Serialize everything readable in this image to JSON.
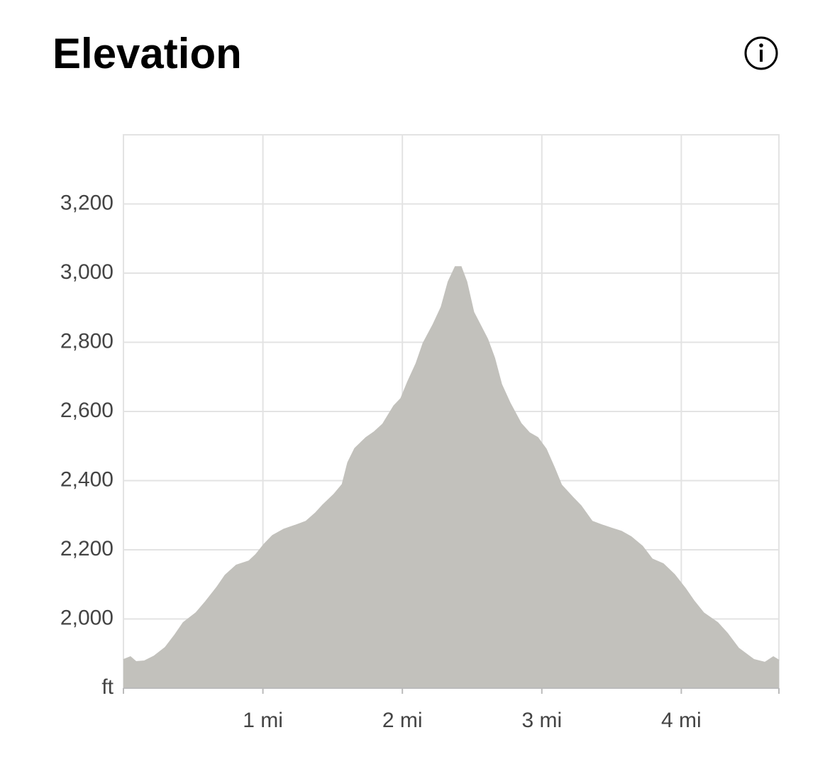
{
  "chart_data": {
    "type": "area",
    "title": "Elevation",
    "y_unit": "ft",
    "color": "#c2c1bc",
    "grid": true,
    "x": [
      0,
      0.05,
      0.09,
      0.15,
      0.22,
      0.3,
      0.37,
      0.43,
      0.52,
      0.59,
      0.67,
      0.73,
      0.81,
      0.9,
      0.95,
      1.01,
      1.07,
      1.15,
      1.23,
      1.31,
      1.38,
      1.43,
      1.51,
      1.57,
      1.61,
      1.66,
      1.74,
      1.8,
      1.86,
      1.94,
      1.99,
      2.04,
      2.1,
      2.15,
      2.22,
      2.28,
      2.33,
      2.38,
      2.42,
      2.46,
      2.51,
      2.61,
      2.66,
      2.71,
      2.77,
      2.85,
      2.91,
      2.97,
      3.03,
      3.09,
      3.14,
      3.22,
      3.28,
      3.36,
      3.44,
      3.5,
      3.57,
      3.64,
      3.72,
      3.79,
      3.87,
      3.95,
      4.03,
      4.09,
      4.16,
      4.26,
      4.33,
      4.41,
      4.52,
      4.6,
      4.66,
      4.7
    ],
    "values": [
      1882,
      1890,
      1876,
      1878,
      1892,
      1917,
      1954,
      1989,
      2017,
      2050,
      2091,
      2126,
      2155,
      2167,
      2186,
      2216,
      2241,
      2259,
      2270,
      2282,
      2307,
      2329,
      2360,
      2389,
      2452,
      2493,
      2524,
      2541,
      2563,
      2616,
      2637,
      2686,
      2739,
      2797,
      2850,
      2902,
      2975,
      3018,
      3018,
      2975,
      2887,
      2809,
      2754,
      2678,
      2625,
      2565,
      2538,
      2524,
      2491,
      2436,
      2387,
      2352,
      2327,
      2282,
      2270,
      2262,
      2253,
      2237,
      2210,
      2173,
      2159,
      2128,
      2087,
      2052,
      2017,
      1989,
      1958,
      1915,
      1882,
      1874,
      1890,
      1880
    ],
    "xlim": [
      0,
      4.7
    ],
    "ylim": [
      1800,
      3400
    ],
    "xticks": [
      {
        "value": 1,
        "label": "1 mi"
      },
      {
        "value": 2,
        "label": "2 mi"
      },
      {
        "value": 3,
        "label": "3 mi"
      },
      {
        "value": 4,
        "label": "4 mi"
      }
    ],
    "yticks": [
      {
        "value": 2000,
        "label": "2,000"
      },
      {
        "value": 2200,
        "label": "2,200"
      },
      {
        "value": 2400,
        "label": "2,400"
      },
      {
        "value": 2600,
        "label": "2,600"
      },
      {
        "value": 2800,
        "label": "2,800"
      },
      {
        "value": 3000,
        "label": "3,000"
      },
      {
        "value": 3200,
        "label": "3,200"
      }
    ]
  }
}
